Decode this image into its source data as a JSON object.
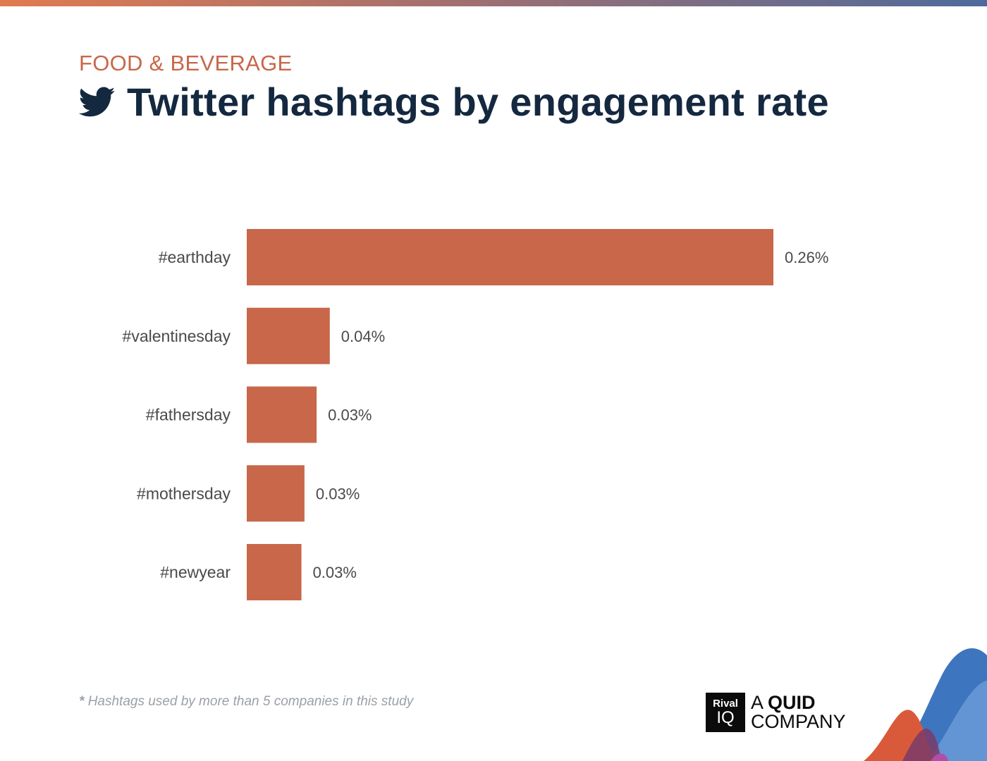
{
  "header": {
    "category": "FOOD & BEVERAGE",
    "title": "Twitter hashtags by engagement rate",
    "icon": "twitter-bird-icon"
  },
  "footnote": {
    "star": "*",
    "text": "Hashtags used by more than 5 companies in this study"
  },
  "logo": {
    "box_line1": "Rival",
    "box_line2": "IQ",
    "text_prefix": "A ",
    "text_bold": "QUID",
    "text_line2": "COMPANY"
  },
  "colors": {
    "bar": "#c8674a",
    "title": "#14283f",
    "category": "#c8674a",
    "label": "#4a4a4a"
  },
  "chart_data": {
    "type": "bar",
    "orientation": "horizontal",
    "title": "Twitter hashtags by engagement rate",
    "categories": [
      "#earthday",
      "#valentinesday",
      "#fathersday",
      "#mothersday",
      "#newyear"
    ],
    "values": [
      0.26,
      0.041,
      0.0345,
      0.0285,
      0.027
    ],
    "data_labels": [
      "0.26%",
      "0.04%",
      "0.03%",
      "0.03%",
      "0.03%"
    ],
    "unit": "%",
    "xlabel": "",
    "ylabel": "",
    "xlim": [
      0,
      0.26
    ],
    "grid": false,
    "legend": "none"
  }
}
